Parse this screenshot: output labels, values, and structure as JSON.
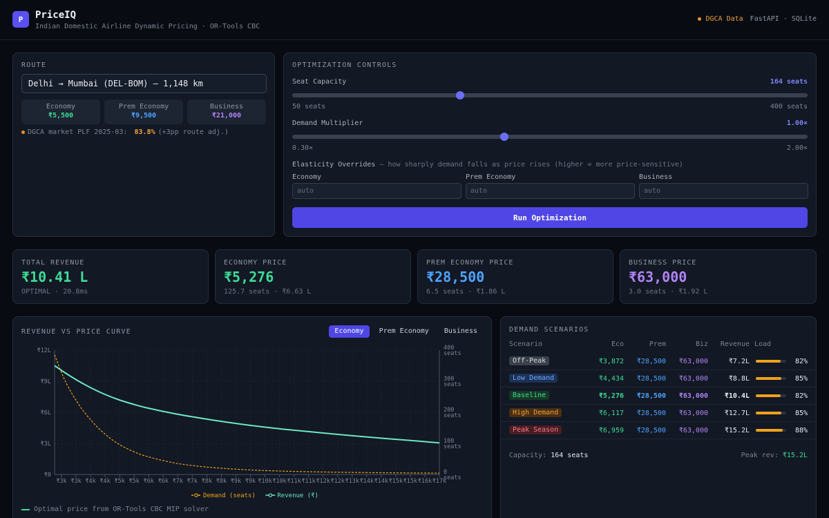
{
  "header": {
    "logo_letter": "P",
    "title": "PriceIQ",
    "subtitle": "Indian Domestic Airline Dynamic Pricing · OR-Tools CBC",
    "data_source": "DGCA Data",
    "stack": "FastAPI · SQLite"
  },
  "route": {
    "section_title": "ROUTE",
    "selected": "Delhi → Mumbai (DEL-BOM) — 1,148 km",
    "cabins": [
      {
        "name": "Economy",
        "price": "₹5,500",
        "color": "#3ddc97"
      },
      {
        "name": "Prem Economy",
        "price": "₹9,500",
        "color": "#4da3ff"
      },
      {
        "name": "Business",
        "price": "₹21,000",
        "color": "#b084f5"
      }
    ],
    "plf_label": "DGCA market PLF 2025-03:",
    "plf_value": "83.8%",
    "plf_adj": "(+3pp route adj.)"
  },
  "controls": {
    "section_title": "OPTIMIZATION CONTROLS",
    "seat_capacity": {
      "label": "Seat Capacity",
      "value_text": "164 seats",
      "value": 164,
      "min": 50,
      "max": 400,
      "min_label": "50 seats",
      "max_label": "400 seats"
    },
    "demand_multiplier": {
      "label": "Demand Multiplier",
      "value_text": "1.00×",
      "value": 1.0,
      "min": 0.3,
      "max": 2.0,
      "min_label": "0.30×",
      "max_label": "2.00×"
    },
    "elasticity_title": "Elasticity Overrides",
    "elasticity_hint": " — how sharply demand falls as price rises (higher = more price-sensitive)",
    "elasticity_fields": [
      {
        "label": "Economy",
        "placeholder": "auto"
      },
      {
        "label": "Prem Economy",
        "placeholder": "auto"
      },
      {
        "label": "Business",
        "placeholder": "auto"
      }
    ],
    "run_label": "Run Optimization"
  },
  "kpis": [
    {
      "label": "TOTAL REVENUE",
      "value": "₹10.41 L",
      "sub": "OPTIMAL · 20.8ms",
      "color": "#3ddc97"
    },
    {
      "label": "ECONOMY PRICE",
      "value": "₹5,276",
      "sub": "125.7 seats · ₹6.63 L",
      "color": "#3ddc97"
    },
    {
      "label": "PREM ECONOMY PRICE",
      "value": "₹28,500",
      "sub": "6.5 seats · ₹1.86 L",
      "color": "#4da3ff"
    },
    {
      "label": "BUSINESS PRICE",
      "value": "₹63,000",
      "sub": "3.0 seats · ₹1.92 L",
      "color": "#b084f5"
    }
  ],
  "chart_panel": {
    "title": "REVENUE VS PRICE CURVE",
    "tabs": [
      "Economy",
      "Prem Economy",
      "Business"
    ],
    "active_tab": "Economy",
    "footnote": "Optimal price from OR-Tools CBC MIP solver"
  },
  "chart_data": {
    "type": "line",
    "x_tick_labels": [
      "₹3k",
      "₹3k",
      "₹4k",
      "₹4k",
      "₹5k",
      "₹5k",
      "₹6k",
      "₹6k",
      "₹7k",
      "₹7k",
      "₹8k",
      "₹8k",
      "₹9k",
      "₹9k",
      "₹10k",
      "₹10k",
      "₹11k",
      "₹11k",
      "₹12k",
      "₹12k",
      "₹13k",
      "₹14k",
      "₹14k",
      "₹15k",
      "₹15k",
      "₹16k",
      "₹17k"
    ],
    "xlim": [
      2600,
      16900
    ],
    "y_left": {
      "label": "Revenue (₹)",
      "ylim": [
        0,
        1200000
      ],
      "ticks": [
        "₹0",
        "₹3L",
        "₹6L",
        "₹9L",
        "₹12L"
      ]
    },
    "y_right": {
      "label": "Demand (seats)",
      "ylim": [
        0,
        400
      ],
      "ticks": [
        "0 seats",
        "100 seats",
        "200 seats",
        "300 seats",
        "400 seats"
      ]
    },
    "x": [
      2600,
      3000,
      3500,
      4000,
      4500,
      5000,
      5500,
      6000,
      7000,
      8000,
      9000,
      10000,
      11000,
      12000,
      13000,
      14000,
      15000,
      16000,
      16900
    ],
    "series": [
      {
        "name": "Demand (seats)",
        "axis": "right",
        "color": "#f0a21c",
        "dashed": true,
        "values": [
          385,
          300,
          225,
          170,
          128,
          97,
          75,
          59,
          38,
          26,
          19,
          14,
          11,
          9,
          7.5,
          6.3,
          5.4,
          4.7,
          4.2
        ]
      },
      {
        "name": "Revenue (₹)",
        "axis": "left",
        "color": "#6ee7c3",
        "dashed": false,
        "values": [
          1050000,
          980000,
          900000,
          830000,
          770000,
          720000,
          680000,
          645000,
          590000,
          545000,
          505000,
          470000,
          440000,
          415000,
          390000,
          367000,
          345000,
          325000,
          305000
        ]
      }
    ],
    "grid": true,
    "legend_position": "bottom"
  },
  "scenarios": {
    "title": "DEMAND SCENARIOS",
    "columns": [
      "Scenario",
      "Eco",
      "Prem",
      "Biz",
      "Revenue",
      "Load"
    ],
    "rows": [
      {
        "name": "Off-Peak",
        "eco": "₹3,872",
        "prem": "₹28,500",
        "biz": "₹63,000",
        "revenue": "₹7.2L",
        "load": "82%",
        "load_value": 0.82,
        "badge_bg": "#3a3f49",
        "badge_fg": "#d7dbe2"
      },
      {
        "name": "Low Demand",
        "eco": "₹4,434",
        "prem": "₹28,500",
        "biz": "₹63,000",
        "revenue": "₹8.8L",
        "load": "85%",
        "load_value": 0.85,
        "badge_bg": "#1c3156",
        "badge_fg": "#6ea8ff"
      },
      {
        "name": "Baseline",
        "eco": "₹5,276",
        "prem": "₹28,500",
        "biz": "₹63,000",
        "revenue": "₹10.4L",
        "load": "82%",
        "load_value": 0.82,
        "badge_bg": "#163826",
        "badge_fg": "#3ddc97",
        "highlight": true
      },
      {
        "name": "High Demand",
        "eco": "₹6,117",
        "prem": "₹28,500",
        "biz": "₹63,000",
        "revenue": "₹12.7L",
        "load": "85%",
        "load_value": 0.85,
        "badge_bg": "#4a2e12",
        "badge_fg": "#f0a23c"
      },
      {
        "name": "Peak Season",
        "eco": "₹6,959",
        "prem": "₹28,500",
        "biz": "₹63,000",
        "revenue": "₹15.2L",
        "load": "88%",
        "load_value": 0.88,
        "badge_bg": "#4a1d24",
        "badge_fg": "#f47c8a"
      }
    ],
    "capacity_label": "Capacity:",
    "capacity_value": "164 seats",
    "peak_label": "Peak rev:",
    "peak_value": "₹15.2L"
  }
}
